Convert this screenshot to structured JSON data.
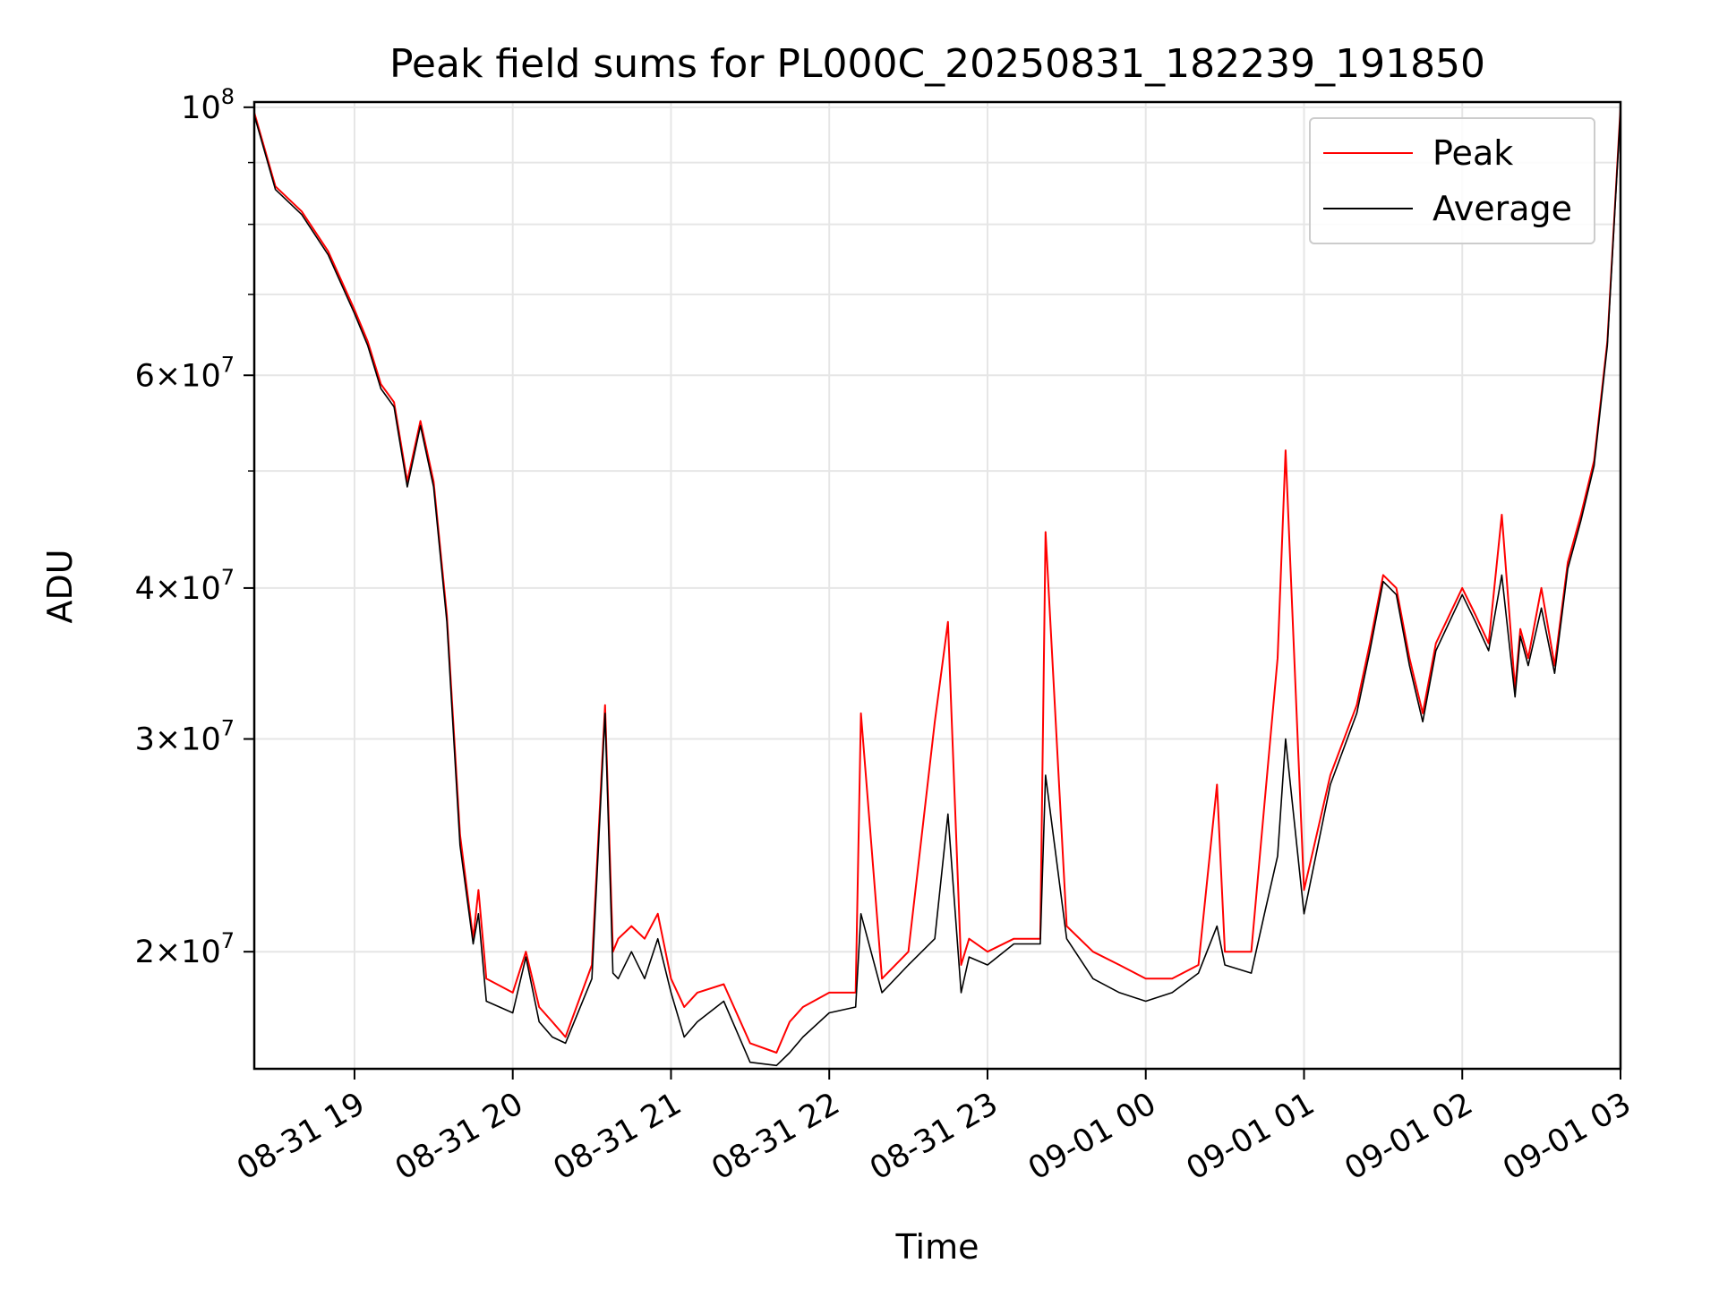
{
  "chart_data": {
    "type": "line",
    "title": "Peak field sums for PL000C_20250831_182239_191850",
    "xlabel": "Time",
    "ylabel": "ADU",
    "yscale": "log",
    "xlim": [
      "2025-08-31 18:22",
      "2025-09-01 03:00"
    ],
    "ylim": [
      16000000,
      101000000
    ],
    "grid": true,
    "legend_position": "top-right",
    "x_ticks": [
      {
        "value": "2025-08-31 19:00",
        "label": "08-31 19"
      },
      {
        "value": "2025-08-31 20:00",
        "label": "08-31 20"
      },
      {
        "value": "2025-08-31 21:00",
        "label": "08-31 21"
      },
      {
        "value": "2025-08-31 22:00",
        "label": "08-31 22"
      },
      {
        "value": "2025-08-31 23:00",
        "label": "08-31 23"
      },
      {
        "value": "2025-09-01 00:00",
        "label": "09-01 00"
      },
      {
        "value": "2025-09-01 01:00",
        "label": "09-01 01"
      },
      {
        "value": "2025-09-01 02:00",
        "label": "09-01 02"
      },
      {
        "value": "2025-09-01 03:00",
        "label": "09-01 03"
      }
    ],
    "y_ticks": [
      {
        "value": 100000000,
        "base": "10",
        "exp": "8"
      },
      {
        "value": 60000000,
        "base": "6×10",
        "exp": "7"
      },
      {
        "value": 40000000,
        "base": "4×10",
        "exp": "7"
      },
      {
        "value": 30000000,
        "base": "3×10",
        "exp": "7"
      },
      {
        "value": 20000000,
        "base": "2×10",
        "exp": "7"
      }
    ],
    "y_minor_ticks": [
      90000000,
      80000000,
      70000000,
      50000000
    ],
    "colors": {
      "peak": "#ff0000",
      "average": "#000000",
      "grid": "#e6e6e6"
    },
    "series": [
      {
        "name": "Peak",
        "color": "#ff0000",
        "x": [
          "2025-08-31 18:22",
          "2025-08-31 18:30",
          "2025-08-31 18:40",
          "2025-08-31 18:50",
          "2025-08-31 19:00",
          "2025-08-31 19:05",
          "2025-08-31 19:10",
          "2025-08-31 19:15",
          "2025-08-31 19:20",
          "2025-08-31 19:25",
          "2025-08-31 19:30",
          "2025-08-31 19:35",
          "2025-08-31 19:40",
          "2025-08-31 19:45",
          "2025-08-31 19:47",
          "2025-08-31 19:50",
          "2025-08-31 20:00",
          "2025-08-31 20:05",
          "2025-08-31 20:10",
          "2025-08-31 20:15",
          "2025-08-31 20:20",
          "2025-08-31 20:30",
          "2025-08-31 20:35",
          "2025-08-31 20:38",
          "2025-08-31 20:40",
          "2025-08-31 20:45",
          "2025-08-31 20:50",
          "2025-08-31 20:55",
          "2025-08-31 21:00",
          "2025-08-31 21:05",
          "2025-08-31 21:10",
          "2025-08-31 21:20",
          "2025-08-31 21:30",
          "2025-08-31 21:40",
          "2025-08-31 21:45",
          "2025-08-31 21:50",
          "2025-08-31 22:00",
          "2025-08-31 22:10",
          "2025-08-31 22:12",
          "2025-08-31 22:20",
          "2025-08-31 22:30",
          "2025-08-31 22:40",
          "2025-08-31 22:45",
          "2025-08-31 22:50",
          "2025-08-31 22:53",
          "2025-08-31 23:00",
          "2025-08-31 23:10",
          "2025-08-31 23:20",
          "2025-08-31 23:22",
          "2025-08-31 23:30",
          "2025-08-31 23:40",
          "2025-08-31 23:50",
          "2025-09-01 00:00",
          "2025-09-01 00:10",
          "2025-09-01 00:20",
          "2025-09-01 00:27",
          "2025-09-01 00:30",
          "2025-09-01 00:40",
          "2025-09-01 00:45",
          "2025-09-01 00:50",
          "2025-09-01 00:53",
          "2025-09-01 01:00",
          "2025-09-01 01:10",
          "2025-09-01 01:20",
          "2025-09-01 01:25",
          "2025-09-01 01:30",
          "2025-09-01 01:35",
          "2025-09-01 01:40",
          "2025-09-01 01:45",
          "2025-09-01 01:50",
          "2025-09-01 02:00",
          "2025-09-01 02:05",
          "2025-09-01 02:10",
          "2025-09-01 02:15",
          "2025-09-01 02:20",
          "2025-09-01 02:22",
          "2025-09-01 02:25",
          "2025-09-01 02:30",
          "2025-09-01 02:35",
          "2025-09-01 02:40",
          "2025-09-01 02:45",
          "2025-09-01 02:50",
          "2025-09-01 02:55",
          "2025-09-01 03:00"
        ],
        "values": [
          99000000,
          86000000,
          82000000,
          76000000,
          68000000,
          64000000,
          59000000,
          57000000,
          49000000,
          55000000,
          49000000,
          38000000,
          25000000,
          20500000,
          22500000,
          19000000,
          18500000,
          20000000,
          18000000,
          17500000,
          17000000,
          19500000,
          32000000,
          20000000,
          20500000,
          21000000,
          20500000,
          21500000,
          19000000,
          18000000,
          18500000,
          18800000,
          16800000,
          16500000,
          17500000,
          18000000,
          18500000,
          18500000,
          31500000,
          19000000,
          20000000,
          31000000,
          37500000,
          19500000,
          20500000,
          20000000,
          20500000,
          20500000,
          44500000,
          21000000,
          20000000,
          19500000,
          19000000,
          19000000,
          19500000,
          27500000,
          20000000,
          20000000,
          26500000,
          35000000,
          52000000,
          22500000,
          28000000,
          32000000,
          36000000,
          41000000,
          40000000,
          35000000,
          31500000,
          36000000,
          40000000,
          38000000,
          36000000,
          46000000,
          33000000,
          37000000,
          35000000,
          40000000,
          34500000,
          42000000,
          46000000,
          51000000,
          64000000,
          100000000
        ]
      },
      {
        "name": "Average",
        "color": "#000000",
        "x": [
          "2025-08-31 18:22",
          "2025-08-31 18:30",
          "2025-08-31 18:40",
          "2025-08-31 18:50",
          "2025-08-31 19:00",
          "2025-08-31 19:05",
          "2025-08-31 19:10",
          "2025-08-31 19:15",
          "2025-08-31 19:20",
          "2025-08-31 19:25",
          "2025-08-31 19:30",
          "2025-08-31 19:35",
          "2025-08-31 19:40",
          "2025-08-31 19:45",
          "2025-08-31 19:47",
          "2025-08-31 19:50",
          "2025-08-31 20:00",
          "2025-08-31 20:05",
          "2025-08-31 20:10",
          "2025-08-31 20:15",
          "2025-08-31 20:20",
          "2025-08-31 20:30",
          "2025-08-31 20:35",
          "2025-08-31 20:38",
          "2025-08-31 20:40",
          "2025-08-31 20:45",
          "2025-08-31 20:50",
          "2025-08-31 20:55",
          "2025-08-31 21:00",
          "2025-08-31 21:05",
          "2025-08-31 21:10",
          "2025-08-31 21:20",
          "2025-08-31 21:30",
          "2025-08-31 21:40",
          "2025-08-31 21:45",
          "2025-08-31 21:50",
          "2025-08-31 22:00",
          "2025-08-31 22:10",
          "2025-08-31 22:12",
          "2025-08-31 22:20",
          "2025-08-31 22:30",
          "2025-08-31 22:40",
          "2025-08-31 22:45",
          "2025-08-31 22:50",
          "2025-08-31 22:53",
          "2025-08-31 23:00",
          "2025-08-31 23:10",
          "2025-08-31 23:20",
          "2025-08-31 23:22",
          "2025-08-31 23:30",
          "2025-08-31 23:40",
          "2025-08-31 23:50",
          "2025-09-01 00:00",
          "2025-09-01 00:10",
          "2025-09-01 00:20",
          "2025-09-01 00:27",
          "2025-09-01 00:30",
          "2025-09-01 00:40",
          "2025-09-01 00:45",
          "2025-09-01 00:50",
          "2025-09-01 00:53",
          "2025-09-01 01:00",
          "2025-09-01 01:10",
          "2025-09-01 01:20",
          "2025-09-01 01:25",
          "2025-09-01 01:30",
          "2025-09-01 01:35",
          "2025-09-01 01:40",
          "2025-09-01 01:45",
          "2025-09-01 01:50",
          "2025-09-01 02:00",
          "2025-09-01 02:05",
          "2025-09-01 02:10",
          "2025-09-01 02:15",
          "2025-09-01 02:20",
          "2025-09-01 02:22",
          "2025-09-01 02:25",
          "2025-09-01 02:30",
          "2025-09-01 02:35",
          "2025-09-01 02:40",
          "2025-09-01 02:45",
          "2025-09-01 02:50",
          "2025-09-01 02:55",
          "2025-09-01 03:00"
        ],
        "values": [
          98500000,
          85500000,
          81500000,
          75500000,
          67500000,
          63500000,
          58500000,
          56500000,
          48500000,
          54500000,
          48500000,
          37500000,
          24500000,
          20300000,
          21500000,
          18200000,
          17800000,
          19800000,
          17500000,
          17000000,
          16800000,
          19000000,
          31500000,
          19200000,
          19000000,
          20000000,
          19000000,
          20500000,
          18500000,
          17000000,
          17500000,
          18200000,
          16200000,
          16100000,
          16500000,
          17000000,
          17800000,
          18000000,
          21500000,
          18500000,
          19500000,
          20500000,
          26000000,
          18500000,
          19800000,
          19500000,
          20300000,
          20300000,
          28000000,
          20500000,
          19000000,
          18500000,
          18200000,
          18500000,
          19200000,
          21000000,
          19500000,
          19200000,
          21500000,
          24000000,
          30000000,
          21500000,
          27500000,
          31500000,
          35500000,
          40500000,
          39500000,
          34500000,
          31000000,
          35500000,
          39500000,
          37500000,
          35500000,
          41000000,
          32500000,
          36500000,
          34500000,
          38500000,
          34000000,
          41500000,
          45500000,
          50500000,
          63500000,
          99500000
        ]
      }
    ]
  },
  "legend": {
    "peak_label": "Peak",
    "average_label": "Average"
  }
}
